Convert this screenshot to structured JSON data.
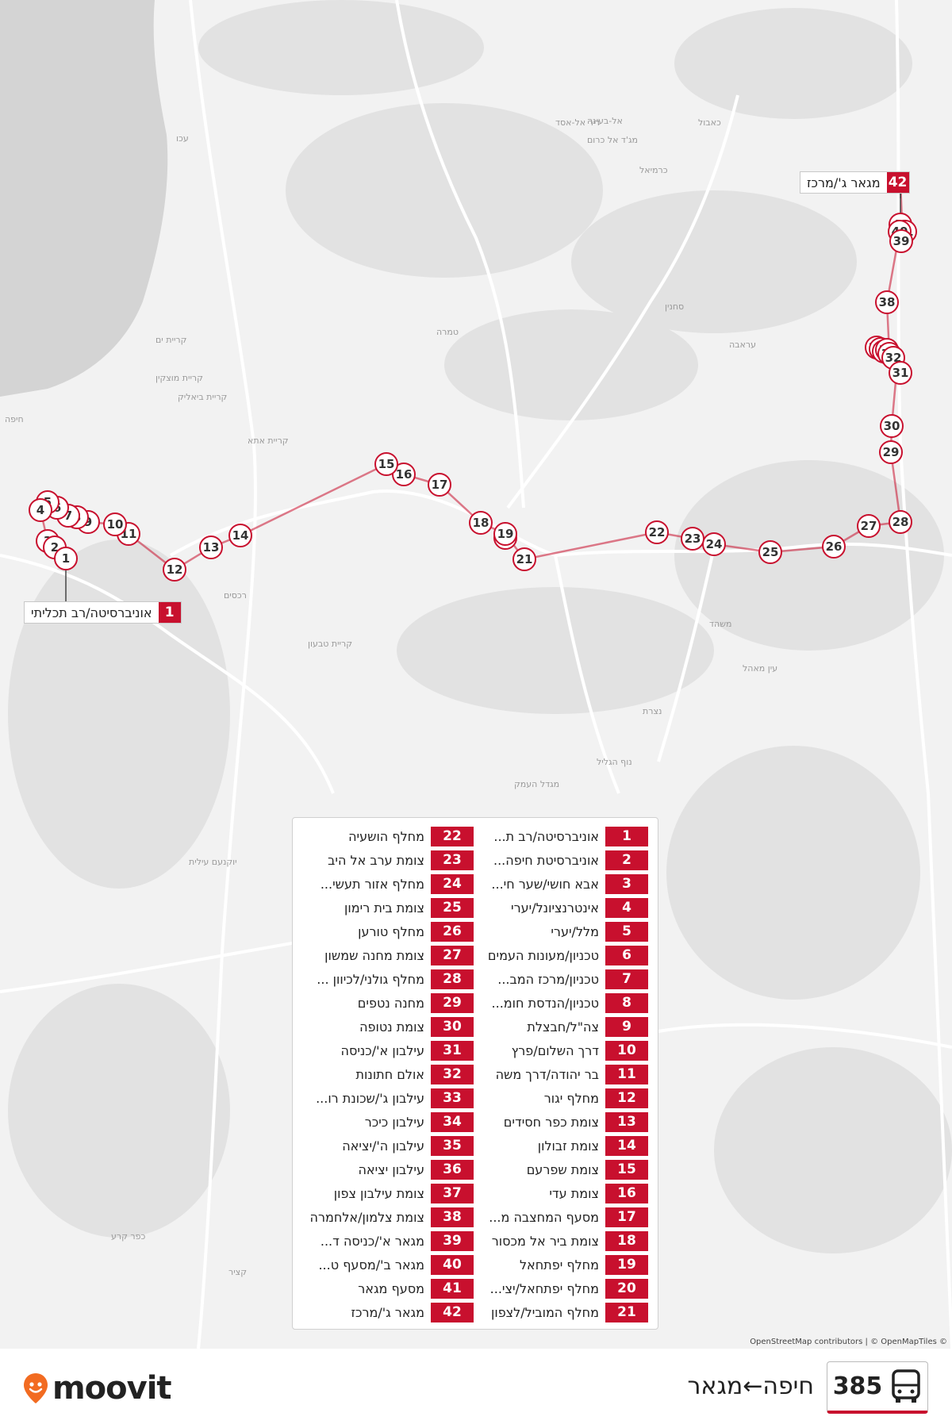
{
  "map": {
    "places": [
      {
        "name": "עכו"
      },
      {
        "name": "קריית ים"
      },
      {
        "name": "קריית מוצקין"
      },
      {
        "name": "קריית ביאליק"
      },
      {
        "name": "חיפה"
      },
      {
        "name": "קריית אתא"
      },
      {
        "name": "רכסים"
      },
      {
        "name": "קריית טבעון"
      },
      {
        "name": "כרמיאל"
      },
      {
        "name": "סחנין"
      },
      {
        "name": "עראבה"
      },
      {
        "name": "טמרה"
      },
      {
        "name": "נצרת"
      },
      {
        "name": "נוף הגליל"
      },
      {
        "name": "מגדל העמק"
      },
      {
        "name": "יוקנעם עילית"
      },
      {
        "name": "משהד"
      },
      {
        "name": "עין מאהל"
      },
      {
        "name": "כפר קרע"
      },
      {
        "name": "קציר"
      },
      {
        "name": "דיר אל-אסד"
      },
      {
        "name": "מג'ד אל כרום"
      },
      {
        "name": "אל-בעינה"
      },
      {
        "name": "כאבול"
      }
    ],
    "attribution": "OpenStreetMap contributors | © OpenMapTiles ©",
    "callout_start": {
      "num": "1",
      "label": "אוניברסיטה/רב תכליתי"
    },
    "callout_end": {
      "num": "42",
      "label": "מגאר ג'/מרכז"
    }
  },
  "route_color": "#c8102e",
  "stops": [
    {
      "num": "1",
      "name": "אוניברסיטה/רב ת..."
    },
    {
      "num": "2",
      "name": "אוניברסיטת חיפה..."
    },
    {
      "num": "3",
      "name": "אבא חושי/שער חי..."
    },
    {
      "num": "4",
      "name": "אינטרנציונל/יערי"
    },
    {
      "num": "5",
      "name": "מלל/יערי"
    },
    {
      "num": "6",
      "name": "טכניון/מעונות העמים"
    },
    {
      "num": "7",
      "name": "טכניון/מרכז המב..."
    },
    {
      "num": "8",
      "name": "טכניון/הנדסת חומ..."
    },
    {
      "num": "9",
      "name": "צה\"ל/חבצלת"
    },
    {
      "num": "10",
      "name": "דרך השלום/פרץ"
    },
    {
      "num": "11",
      "name": "בר יהודה/דרך משה"
    },
    {
      "num": "12",
      "name": "מחלף יגור"
    },
    {
      "num": "13",
      "name": "צומת כפר חסידים"
    },
    {
      "num": "14",
      "name": "צומת זבולון"
    },
    {
      "num": "15",
      "name": "צומת שפרעם"
    },
    {
      "num": "16",
      "name": "צומת עדי"
    },
    {
      "num": "17",
      "name": "מסעף המחצבה מ..."
    },
    {
      "num": "18",
      "name": "צומת ביר אל מכסור"
    },
    {
      "num": "19",
      "name": "מחלף יפתחאל"
    },
    {
      "num": "20",
      "name": "מחלף יפתחאל/יצי..."
    },
    {
      "num": "21",
      "name": "מחלף המוביל/לצפון"
    },
    {
      "num": "22",
      "name": "מחלף הושעיה"
    },
    {
      "num": "23",
      "name": "צומת ערב אל היב"
    },
    {
      "num": "24",
      "name": "מחלף אזור תעשי..."
    },
    {
      "num": "25",
      "name": "צומת בית רימון"
    },
    {
      "num": "26",
      "name": "מחלף טורען"
    },
    {
      "num": "27",
      "name": "צומת מחנה שמשון"
    },
    {
      "num": "28",
      "name": "מחלף גולני/לכיוון ..."
    },
    {
      "num": "29",
      "name": "מחנה נטפים"
    },
    {
      "num": "30",
      "name": "צומת נטופה"
    },
    {
      "num": "31",
      "name": "עילבון א'/כניסה"
    },
    {
      "num": "32",
      "name": "אולם חתונות"
    },
    {
      "num": "33",
      "name": "עילבון ג'/שכונת רו..."
    },
    {
      "num": "34",
      "name": "עילבון כיכר"
    },
    {
      "num": "35",
      "name": "עילבון ה'/יציאה"
    },
    {
      "num": "36",
      "name": "עילבון יציאה"
    },
    {
      "num": "37",
      "name": "צומת עילבון צפון"
    },
    {
      "num": "38",
      "name": "צומת צלמון/אלחמרה"
    },
    {
      "num": "39",
      "name": "מגאר א'/כניסה ד..."
    },
    {
      "num": "40",
      "name": "מגאר ב'/מסעף ט..."
    },
    {
      "num": "41",
      "name": "מסעף מגאר"
    },
    {
      "num": "42",
      "name": "מגאר ג'/מרכז"
    }
  ],
  "footer": {
    "brand": "moovit",
    "route_number": "385",
    "route_title": "חיפה←מגאר",
    "bus_icon": "bus-icon",
    "brand_icon": "moovit-pin-icon"
  }
}
